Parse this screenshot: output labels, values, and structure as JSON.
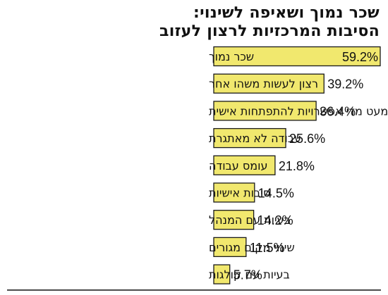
{
  "title": {
    "line1": "שכר נמוך ושאיפה לשינוי:",
    "line2": "הסיבות המרכזיות לרצון לעזוב"
  },
  "chart_data": {
    "type": "bar",
    "orientation": "horizontal",
    "categories": [
      "שכר נמוך",
      "רצון לעשות משהו אחר",
      "מעט מדי אפשרויות להתפתחות אישית",
      "עבודה לא מאתגרת",
      "עומס עבודה",
      "סיבות אישיות",
      "בעיות עם המנהל",
      "שינוי מקום מגורים",
      "בעיות עם קולגות"
    ],
    "values": [
      59.2,
      39.2,
      36.4,
      25.6,
      21.8,
      14.5,
      14.2,
      11.5,
      5.7
    ],
    "value_labels": [
      "59.2%",
      "39.2%",
      "36.4%",
      "25.6%",
      "21.8%",
      "14.5%",
      "14.2%",
      "11.5%",
      "5.7%"
    ],
    "xlim": [
      0,
      59.2
    ],
    "bar_color": "#f1e86e",
    "title": "שכר נמוך ושאיפה לשינוי: הסיבות המרכזיות לרצון לעזוב"
  }
}
